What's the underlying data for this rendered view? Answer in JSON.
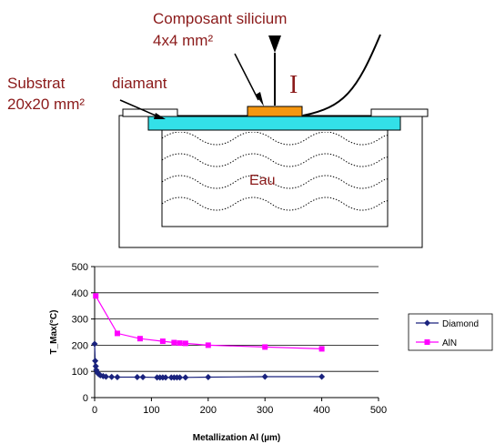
{
  "diagram": {
    "component_label_line1": "Composant silicium",
    "component_label_line2": "4x4 mm²",
    "substrate_label_line1": "Substrat",
    "substrate_label_line2": "diamant",
    "substrate_label_line3": "20x20 mm²",
    "current_label": "I",
    "water_label": "Eau",
    "colors": {
      "label": "#8b1a1a",
      "substrate": "#33e0e8",
      "component": "#f5960f"
    }
  },
  "chart_data": {
    "type": "line",
    "xlabel": "Metallization Al (µm)",
    "ylabel": "T_Max(°C)",
    "xlim": [
      0,
      500
    ],
    "ylim": [
      0,
      500
    ],
    "xticks": [
      0,
      100,
      200,
      300,
      400,
      500
    ],
    "yticks": [
      0,
      100,
      200,
      300,
      400,
      500
    ],
    "grid": "horizontal",
    "legend_position": "right",
    "series": [
      {
        "name": "Diamond",
        "color": "#1a237e",
        "marker": "diamond",
        "x": [
          0,
          1,
          2,
          3,
          5,
          7,
          10,
          15,
          20,
          30,
          40,
          75,
          85,
          110,
          115,
          120,
          125,
          135,
          140,
          145,
          150,
          160,
          200,
          300,
          400
        ],
        "y": [
          205,
          140,
          120,
          105,
          95,
          90,
          85,
          82,
          80,
          79,
          78,
          78,
          78,
          77,
          77,
          77,
          77,
          77,
          77,
          77,
          77,
          77,
          78,
          80,
          80
        ]
      },
      {
        "name": "AlN",
        "color": "#ff00ff",
        "marker": "square",
        "x": [
          2,
          40,
          80,
          120,
          140,
          150,
          160,
          200,
          300,
          400
        ],
        "y": [
          388,
          245,
          225,
          215,
          210,
          208,
          207,
          200,
          193,
          186
        ]
      }
    ]
  }
}
